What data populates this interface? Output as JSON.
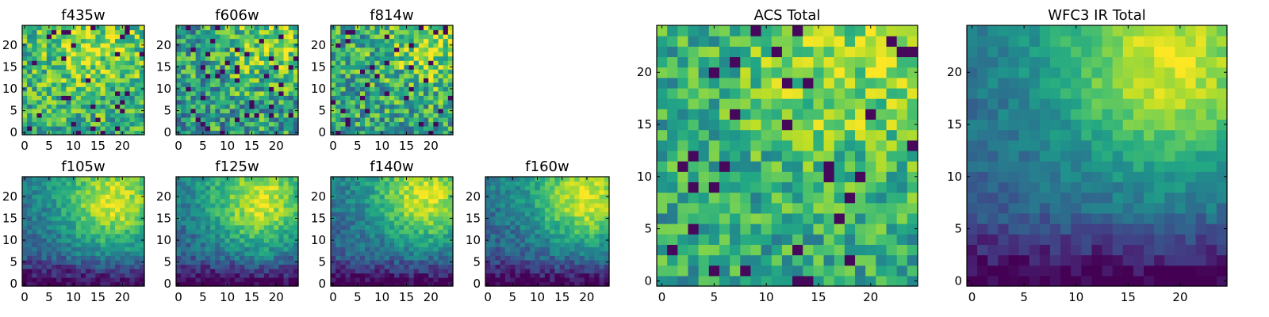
{
  "figure": {
    "colormap": "viridis",
    "background": "#ffffff"
  },
  "chart_data": [
    {
      "type": "heatmap",
      "title": "f435w",
      "size": 25,
      "xticks": [
        0,
        5,
        10,
        15,
        20
      ],
      "yticks": [
        0,
        5,
        10,
        15,
        20
      ],
      "xlim": [
        0,
        25
      ],
      "ylim": [
        0,
        25
      ],
      "field": {
        "seed": 11,
        "mode": "noise",
        "warm": [
          14,
          20
        ],
        "bright": 0.62,
        "spread": 0.22
      }
    },
    {
      "type": "heatmap",
      "title": "f606w",
      "size": 25,
      "xticks": [
        0,
        5,
        10,
        15,
        20
      ],
      "yticks": [
        0,
        5,
        10,
        15,
        20
      ],
      "xlim": [
        0,
        25
      ],
      "ylim": [
        0,
        25
      ],
      "field": {
        "seed": 23,
        "mode": "noise",
        "warm": [
          19,
          21
        ],
        "bright": 0.55,
        "spread": 0.25
      }
    },
    {
      "type": "heatmap",
      "title": "f814w",
      "size": 25,
      "xticks": [
        0,
        5,
        10,
        15,
        20
      ],
      "yticks": [
        0,
        5,
        10,
        15,
        20
      ],
      "xlim": [
        0,
        25
      ],
      "ylim": [
        0,
        25
      ],
      "field": {
        "seed": 37,
        "mode": "noise",
        "warm": [
          20,
          21
        ],
        "bright": 0.58,
        "spread": 0.24
      }
    },
    {
      "type": "heatmap",
      "title": "f105w",
      "size": 25,
      "xticks": [
        0,
        5,
        10,
        15,
        20
      ],
      "yticks": [
        0,
        5,
        10,
        15,
        20
      ],
      "xlim": [
        0,
        25
      ],
      "ylim": [
        0,
        25
      ],
      "field": {
        "seed": 41,
        "mode": "smooth",
        "warm": [
          18,
          18
        ],
        "bright": 0.55,
        "spread": 0.12
      }
    },
    {
      "type": "heatmap",
      "title": "f125w",
      "size": 25,
      "xticks": [
        0,
        5,
        10,
        15,
        20
      ],
      "yticks": [
        0,
        5,
        10,
        15,
        20
      ],
      "xlim": [
        0,
        25
      ],
      "ylim": [
        0,
        25
      ],
      "field": {
        "seed": 53,
        "mode": "smooth",
        "warm": [
          17,
          18
        ],
        "bright": 0.55,
        "spread": 0.13
      }
    },
    {
      "type": "heatmap",
      "title": "f140w",
      "size": 25,
      "xticks": [
        0,
        5,
        10,
        15,
        20
      ],
      "yticks": [
        0,
        5,
        10,
        15,
        20
      ],
      "xlim": [
        0,
        25
      ],
      "ylim": [
        0,
        25
      ],
      "field": {
        "seed": 67,
        "mode": "smooth",
        "warm": [
          19,
          19
        ],
        "bright": 0.55,
        "spread": 0.12
      }
    },
    {
      "type": "heatmap",
      "title": "f160w",
      "size": 25,
      "xticks": [
        0,
        5,
        10,
        15,
        20
      ],
      "yticks": [
        0,
        5,
        10,
        15,
        20
      ],
      "xlim": [
        0,
        25
      ],
      "ylim": [
        0,
        25
      ],
      "field": {
        "seed": 79,
        "mode": "smooth",
        "warm": [
          20,
          19
        ],
        "bright": 0.55,
        "spread": 0.12
      }
    },
    {
      "type": "heatmap",
      "title": "ACS Total",
      "size": 25,
      "xticks": [
        0,
        5,
        10,
        15,
        20
      ],
      "yticks": [
        0,
        5,
        10,
        15,
        20
      ],
      "xlim": [
        0,
        25
      ],
      "ylim": [
        0,
        25
      ],
      "field": {
        "seed": 97,
        "mode": "noise",
        "warm": [
          18,
          21
        ],
        "bright": 0.6,
        "spread": 0.18
      }
    },
    {
      "type": "heatmap",
      "title": "WFC3 IR Total",
      "size": 25,
      "xticks": [
        0,
        5,
        10,
        15,
        20
      ],
      "yticks": [
        0,
        5,
        10,
        15,
        20
      ],
      "xlim": [
        0,
        25
      ],
      "ylim": [
        0,
        25
      ],
      "field": {
        "seed": 101,
        "mode": "smooth",
        "warm": [
          19,
          20
        ],
        "bright": 0.55,
        "spread": 0.09
      }
    }
  ]
}
